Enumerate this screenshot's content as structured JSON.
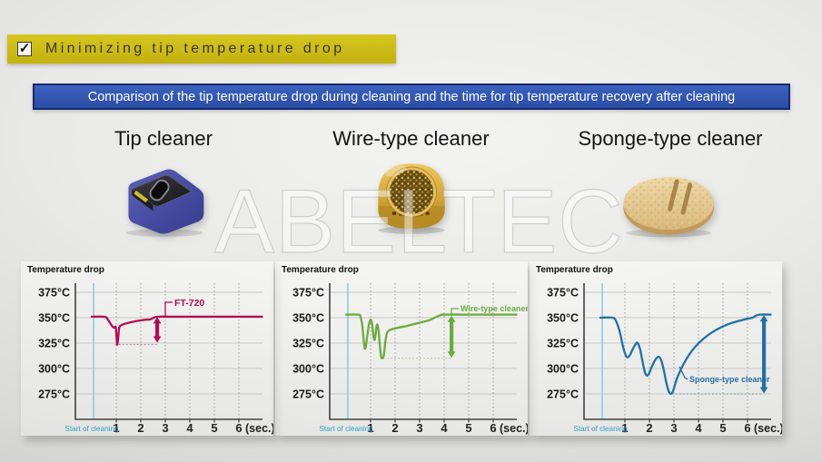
{
  "title_banner": {
    "checkbox": "✓",
    "label": "Minimizing tip temperature drop"
  },
  "subtitle_banner": {
    "label": "Comparison of the tip temperature drop during cleaning and the time for tip temperature recovery after cleaning"
  },
  "watermark": "ABELTEC",
  "columns": [
    {
      "title": "Tip cleaner"
    },
    {
      "title": "Wire-type cleaner"
    },
    {
      "title": "Sponge-type cleaner"
    }
  ],
  "colors": {
    "banner_yellow": "#cdbc17",
    "banner_blue": "#2e55b0",
    "tip_cleaner_series": "#b30b55",
    "wire_cleaner_series": "#6aab3c",
    "sponge_cleaner_series": "#2170a4",
    "start_line": "#8ecbdc",
    "start_label": "#339fc2"
  },
  "chart_data": [
    {
      "type": "line",
      "title": "Temperature drop",
      "series_label": "FT-720",
      "color": "#b30b55",
      "x_axis": {
        "start_label": "Start of cleaning",
        "ticks": [
          1,
          2,
          3,
          4,
          5,
          6
        ],
        "unit": "(sec.)"
      },
      "y_axis": {
        "tick_labels": [
          "375°C",
          "350°C",
          "325°C",
          "300°C",
          "275°C"
        ],
        "tick_values": [
          375,
          350,
          325,
          300,
          275
        ]
      },
      "xlim": [
        0,
        6.95
      ],
      "ylim": [
        268,
        384
      ],
      "baseline_temp": 351,
      "min_temp": 323,
      "arrow": {
        "t": 2.67,
        "top": 351,
        "bottom": 325
      },
      "min_line": {
        "temp": 323.5,
        "t_from": 0.95,
        "t_to": 2.67
      },
      "points": [
        [
          0,
          351
        ],
        [
          0.5,
          351
        ],
        [
          0.62,
          349.5
        ],
        [
          0.74,
          345
        ],
        [
          0.84,
          341.5
        ],
        [
          0.92,
          340
        ],
        [
          0.98,
          340.5
        ],
        [
          1.02,
          328
        ],
        [
          1.04,
          323.5
        ],
        [
          1.07,
          328
        ],
        [
          1.12,
          340
        ],
        [
          1.2,
          342.5
        ],
        [
          1.35,
          344
        ],
        [
          1.6,
          345.5
        ],
        [
          1.9,
          347
        ],
        [
          2.2,
          348
        ],
        [
          2.4,
          348.5
        ],
        [
          2.55,
          350.2
        ],
        [
          2.75,
          351
        ],
        [
          3.5,
          351
        ],
        [
          5,
          351
        ],
        [
          6.95,
          351
        ]
      ]
    },
    {
      "type": "line",
      "title": "Temperature drop",
      "series_label": "Wire-type cleaner",
      "color": "#6aab3c",
      "x_axis": {
        "start_label": "Start of cleaning",
        "ticks": [
          1,
          2,
          3,
          4,
          5,
          6
        ],
        "unit": "(sec.)"
      },
      "y_axis": {
        "tick_labels": [
          "375°C",
          "350°C",
          "325°C",
          "300°C",
          "275°C"
        ],
        "tick_values": [
          375,
          350,
          325,
          300,
          275
        ]
      },
      "xlim": [
        0,
        6.95
      ],
      "ylim": [
        268,
        384
      ],
      "baseline_temp": 353,
      "min_temp": 310,
      "arrow": {
        "t": 4.3,
        "top": 352.5,
        "bottom": 310
      },
      "min_line": {
        "temp": 310,
        "t_from": 1.52,
        "t_to": 4.26
      },
      "points": [
        [
          0,
          353
        ],
        [
          0.5,
          353
        ],
        [
          0.58,
          351.5
        ],
        [
          0.66,
          343
        ],
        [
          0.72,
          328
        ],
        [
          0.76,
          320
        ],
        [
          0.8,
          321
        ],
        [
          0.86,
          331
        ],
        [
          0.93,
          343
        ],
        [
          1.0,
          348
        ],
        [
          1.06,
          344
        ],
        [
          1.11,
          333
        ],
        [
          1.15,
          328
        ],
        [
          1.19,
          331
        ],
        [
          1.24,
          341
        ],
        [
          1.28,
          343
        ],
        [
          1.33,
          336
        ],
        [
          1.38,
          322
        ],
        [
          1.43,
          312
        ],
        [
          1.48,
          310
        ],
        [
          1.54,
          313
        ],
        [
          1.6,
          326
        ],
        [
          1.66,
          334
        ],
        [
          1.73,
          337
        ],
        [
          1.85,
          338.5
        ],
        [
          2.1,
          340
        ],
        [
          2.5,
          342
        ],
        [
          2.9,
          344.5
        ],
        [
          3.25,
          346.5
        ],
        [
          3.45,
          348
        ],
        [
          3.65,
          350.5
        ],
        [
          3.85,
          352.5
        ],
        [
          4.0,
          353
        ],
        [
          5,
          353
        ],
        [
          6.95,
          353
        ]
      ]
    },
    {
      "type": "line",
      "title": "Temperature drop",
      "series_label": "Sponge-type cleaner",
      "color": "#2170a4",
      "x_axis": {
        "start_label": "Start of cleaning",
        "ticks": [
          1,
          2,
          3,
          4,
          5,
          6
        ],
        "unit": "(sec.)"
      },
      "y_axis": {
        "tick_labels": [
          "375°C",
          "350°C",
          "325°C",
          "300°C",
          "275°C"
        ],
        "tick_values": [
          375,
          350,
          325,
          300,
          275
        ]
      },
      "xlim": [
        0,
        6.95
      ],
      "ylim": [
        268,
        384
      ],
      "baseline_temp": 350,
      "min_temp": 275,
      "arrow": {
        "t": 6.67,
        "top": 353,
        "bottom": 275
      },
      "min_line": {
        "temp": 275,
        "t_from": 2.92,
        "t_to": 6.62
      },
      "points": [
        [
          0,
          350
        ],
        [
          0.5,
          350
        ],
        [
          0.64,
          346.5
        ],
        [
          0.78,
          337
        ],
        [
          0.92,
          322
        ],
        [
          1.02,
          314
        ],
        [
          1.1,
          311
        ],
        [
          1.2,
          313
        ],
        [
          1.32,
          319
        ],
        [
          1.45,
          324.5
        ],
        [
          1.52,
          325
        ],
        [
          1.62,
          319
        ],
        [
          1.72,
          307
        ],
        [
          1.82,
          296
        ],
        [
          1.9,
          293
        ],
        [
          1.98,
          295
        ],
        [
          2.1,
          302
        ],
        [
          2.25,
          309
        ],
        [
          2.38,
          311.5
        ],
        [
          2.48,
          308
        ],
        [
          2.58,
          299
        ],
        [
          2.68,
          287
        ],
        [
          2.78,
          278
        ],
        [
          2.88,
          275
        ],
        [
          2.98,
          279
        ],
        [
          3.12,
          290
        ],
        [
          3.3,
          300
        ],
        [
          3.5,
          309
        ],
        [
          3.75,
          318
        ],
        [
          4.05,
          326
        ],
        [
          4.4,
          333
        ],
        [
          4.8,
          339
        ],
        [
          5.2,
          343.5
        ],
        [
          5.6,
          346.5
        ],
        [
          6.0,
          349
        ],
        [
          6.2,
          350
        ],
        [
          6.35,
          352
        ],
        [
          6.5,
          353
        ],
        [
          6.95,
          353
        ]
      ]
    }
  ]
}
